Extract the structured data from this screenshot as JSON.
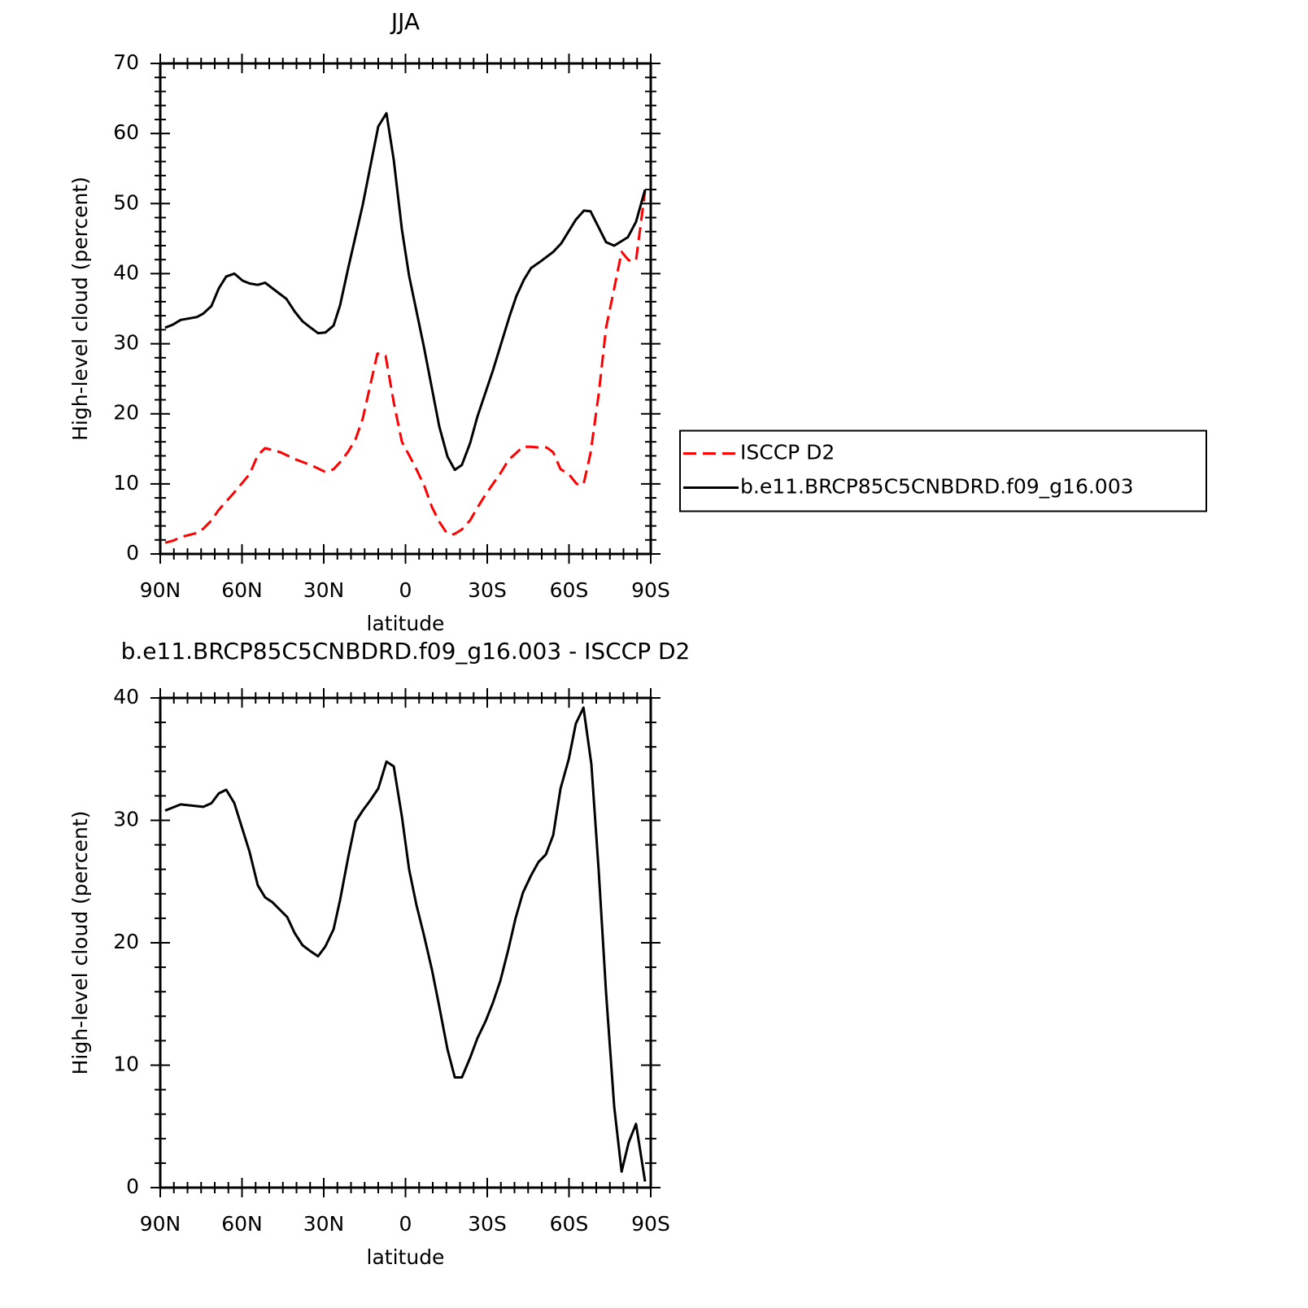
{
  "chart_data": [
    {
      "type": "line",
      "title": "JJA",
      "xlabel": "latitude",
      "ylabel": "High-level cloud (percent)",
      "xlim": [
        90,
        -90
      ],
      "xticks": [
        {
          "value": 90,
          "label": "90N"
        },
        {
          "value": 60,
          "label": "60N"
        },
        {
          "value": 30,
          "label": "30N"
        },
        0,
        {
          "value": -30,
          "label": "30S"
        },
        {
          "value": -60,
          "label": "60S"
        },
        {
          "value": -90,
          "label": "90S"
        }
      ],
      "ylim": [
        0,
        70
      ],
      "yticks": [
        0,
        10,
        20,
        30,
        40,
        50,
        60,
        70
      ],
      "legend": "right",
      "series": [
        {
          "name": "ISCCP D2",
          "color": "#ff0000",
          "line_style": "dashed",
          "x": [
            88.2,
            85.2,
            82.5,
            76.6,
            74.2,
            71.2,
            68.5,
            62.8,
            57.2,
            54.2,
            51.5,
            45.8,
            40.4,
            34.8,
            29.4,
            26.4,
            24.0,
            21.0,
            18.3,
            15.7,
            10.3,
            7.3,
            4.3,
            1.3,
            -1.3,
            -4.0,
            -7.0,
            -9.7,
            -12.4,
            -15.1,
            -17.8,
            -20.7,
            -23.7,
            -26.4,
            -29.4,
            -34.8,
            -37.8,
            -43.1,
            -46.1,
            -48.8,
            -51.8,
            -54.2,
            -56.9,
            -59.9,
            -62.8,
            -65.3,
            -67.9,
            -70.9,
            -73.6,
            -76.6,
            -79.3,
            -81.9,
            -84.6,
            -87.9
          ],
          "values": [
            1.6,
            1.9,
            2.4,
            3.0,
            3.6,
            4.8,
            6.3,
            8.8,
            11.4,
            14.1,
            15.1,
            14.5,
            13.5,
            12.7,
            11.7,
            12.1,
            13.1,
            14.6,
            16.4,
            19.3,
            28.6,
            28.3,
            21.6,
            16.0,
            14.1,
            12.1,
            9.6,
            6.7,
            4.6,
            3.0,
            2.8,
            3.5,
            4.8,
            6.6,
            8.5,
            11.5,
            13.4,
            15.3,
            15.3,
            15.2,
            15.2,
            14.5,
            12.1,
            11.4,
            10.0,
            9.9,
            14.4,
            22.8,
            32.3,
            37.9,
            43.1,
            41.9,
            41.9,
            51.8
          ]
        },
        {
          "name": "b.e11.BRCP85C5CNBDRD.f09_g16.003",
          "color": "#000000",
          "line_style": "solid",
          "x": [
            88.2,
            85.5,
            82.5,
            76.6,
            74.2,
            71.2,
            68.5,
            65.8,
            62.8,
            59.8,
            57.2,
            54.2,
            51.5,
            48.8,
            43.7,
            40.7,
            37.8,
            34.8,
            32.1,
            29.4,
            26.4,
            24.0,
            21.0,
            15.7,
            10.0,
            7.0,
            4.3,
            1.3,
            -1.3,
            -6.7,
            -12.4,
            -15.4,
            -18.1,
            -20.7,
            -23.7,
            -26.4,
            -32.1,
            -38.1,
            -40.7,
            -43.4,
            -46.1,
            -49.4,
            -54.2,
            -57.1,
            -62.5,
            -65.5,
            -67.9,
            -73.6,
            -76.6,
            -81.6,
            -84.6,
            -87.9
          ],
          "values": [
            32.3,
            32.7,
            33.4,
            33.8,
            34.3,
            35.4,
            37.9,
            39.6,
            40.0,
            39.0,
            38.6,
            38.4,
            38.7,
            37.9,
            36.4,
            34.6,
            33.2,
            32.3,
            31.5,
            31.6,
            32.6,
            35.5,
            40.8,
            49.8,
            61.0,
            62.9,
            56.2,
            46.3,
            39.7,
            29.7,
            18.2,
            13.9,
            12.0,
            12.7,
            15.8,
            19.6,
            26.2,
            33.8,
            36.8,
            39.1,
            40.8,
            41.7,
            43.1,
            44.3,
            47.7,
            49.0,
            48.9,
            44.5,
            44.0,
            45.2,
            47.4,
            52.0
          ]
        }
      ]
    },
    {
      "type": "line",
      "title": "b.e11.BRCP85C5CNBDRD.f09_g16.003 - ISCCP D2",
      "xlabel": "latitude",
      "ylabel": "High-level cloud (percent)",
      "xlim": [
        90,
        -90
      ],
      "xticks": [
        {
          "value": 90,
          "label": "90N"
        },
        {
          "value": 60,
          "label": "60N"
        },
        {
          "value": 30,
          "label": "30N"
        },
        0,
        {
          "value": -30,
          "label": "30S"
        },
        {
          "value": -60,
          "label": "60S"
        },
        {
          "value": -90,
          "label": "90S"
        }
      ],
      "ylim": [
        0,
        40
      ],
      "yticks": [
        0,
        10,
        20,
        30,
        40
      ],
      "series": [
        {
          "color": "#000000",
          "line_style": "solid",
          "x": [
            88.2,
            82.5,
            74.2,
            71.2,
            68.5,
            65.8,
            62.8,
            57.2,
            54.2,
            51.5,
            48.8,
            43.4,
            40.7,
            37.8,
            34.8,
            32.1,
            29.4,
            26.4,
            24.0,
            21.0,
            18.3,
            15.7,
            13.0,
            10.0,
            7.0,
            4.3,
            1.3,
            -1.3,
            -4.0,
            -6.7,
            -9.7,
            -12.4,
            -15.4,
            -18.1,
            -20.7,
            -23.7,
            -26.4,
            -29.4,
            -32.1,
            -34.8,
            -37.8,
            -40.4,
            -43.1,
            -46.1,
            -48.8,
            -51.5,
            -54.2,
            -56.9,
            -59.9,
            -62.5,
            -65.3,
            -68.2,
            -70.9,
            -73.6,
            -76.6,
            -79.3,
            -81.9,
            -84.6,
            -87.9
          ],
          "values": [
            30.8,
            31.3,
            31.1,
            31.4,
            32.2,
            32.5,
            31.4,
            27.4,
            24.7,
            23.7,
            23.3,
            22.1,
            20.8,
            19.8,
            19.3,
            18.9,
            19.7,
            21.1,
            23.5,
            27.0,
            29.9,
            30.8,
            31.6,
            32.6,
            34.8,
            34.4,
            30.3,
            26.0,
            23.1,
            20.7,
            17.8,
            14.8,
            11.3,
            9.0,
            9.0,
            10.6,
            12.2,
            13.6,
            15.1,
            16.9,
            19.5,
            22.0,
            24.1,
            25.5,
            26.6,
            27.2,
            28.8,
            32.6,
            35.0,
            37.9,
            39.2,
            34.6,
            25.9,
            15.9,
            6.6,
            1.3,
            3.7,
            5.2,
            0.5
          ]
        }
      ]
    }
  ]
}
